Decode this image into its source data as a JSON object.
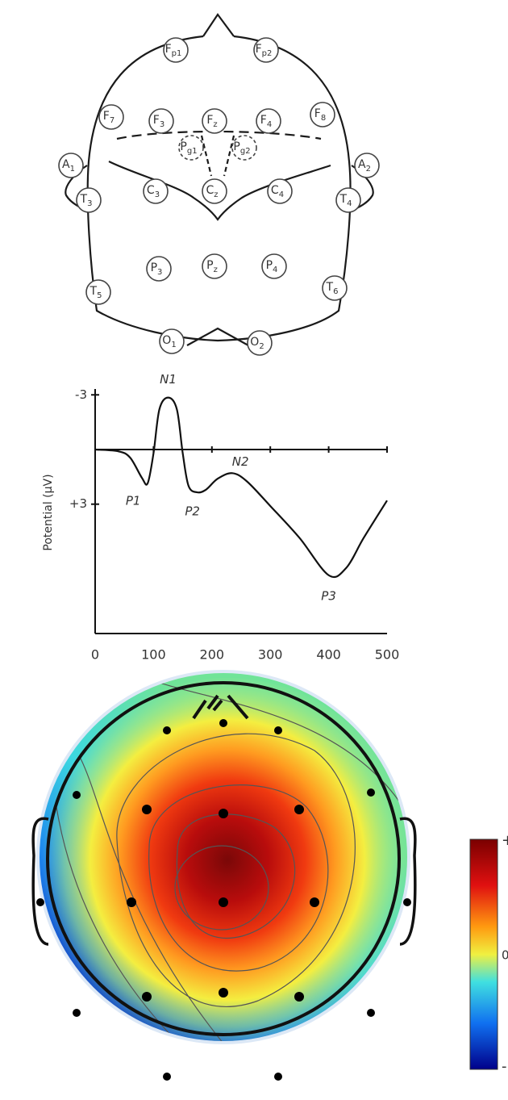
{
  "electrodes": [
    {
      "base": "F",
      "sub": "p1"
    },
    {
      "base": "F",
      "sub": "p2"
    },
    {
      "base": "F",
      "sub": "7"
    },
    {
      "base": "F",
      "sub": "3"
    },
    {
      "base": "F",
      "sub": "z"
    },
    {
      "base": "F",
      "sub": "4"
    },
    {
      "base": "F",
      "sub": "8"
    },
    {
      "base": "P",
      "sub": "g1"
    },
    {
      "base": "P",
      "sub": "g2"
    },
    {
      "base": "A",
      "sub": "1"
    },
    {
      "base": "A",
      "sub": "2"
    },
    {
      "base": "T",
      "sub": "3"
    },
    {
      "base": "C",
      "sub": "3"
    },
    {
      "base": "C",
      "sub": "z"
    },
    {
      "base": "C",
      "sub": "4"
    },
    {
      "base": "T",
      "sub": "4"
    },
    {
      "base": "P",
      "sub": "3"
    },
    {
      "base": "P",
      "sub": "z"
    },
    {
      "base": "P",
      "sub": "4"
    },
    {
      "base": "T",
      "sub": "5"
    },
    {
      "base": "T",
      "sub": "6"
    },
    {
      "base": "O",
      "sub": "1"
    },
    {
      "base": "O",
      "sub": "2"
    }
  ],
  "chart_data": {
    "type": "line",
    "y_label": "Potential (μV)",
    "x": [
      0,
      40,
      60,
      80,
      90,
      100,
      110,
      125,
      140,
      150,
      160,
      175,
      190,
      210,
      235,
      260,
      300,
      350,
      400,
      430,
      460,
      500
    ],
    "series": [
      {
        "color": "#111111",
        "values": [
          0,
          0.1,
          0.45,
          1.55,
          1.85,
          0.2,
          -2.2,
          -2.85,
          -2.2,
          0.2,
          2.0,
          2.35,
          2.2,
          1.6,
          1.3,
          1.75,
          3.1,
          4.85,
          6.9,
          6.5,
          4.85,
          2.8
        ]
      }
    ],
    "xlim": [
      0,
      500
    ],
    "ylim": [
      10.1,
      -3.1
    ],
    "xticks": [
      0,
      100,
      200,
      300,
      400,
      500
    ],
    "yticks": [
      -3,
      {
        "value": 3,
        "label": "+3"
      }
    ],
    "annotations": [
      {
        "text": "N1",
        "x": 125,
        "y": -2.85
      },
      {
        "text": "P1",
        "x": 90,
        "y": 1.85
      },
      {
        "text": "P2",
        "x": 175,
        "y": 2.35
      },
      {
        "text": "N2",
        "x": 235,
        "y": 1.3
      },
      {
        "text": "P3",
        "x": 400,
        "y": 6.9
      }
    ]
  },
  "colorbar": {
    "top": "+",
    "middle": "0",
    "bottom": "-"
  }
}
